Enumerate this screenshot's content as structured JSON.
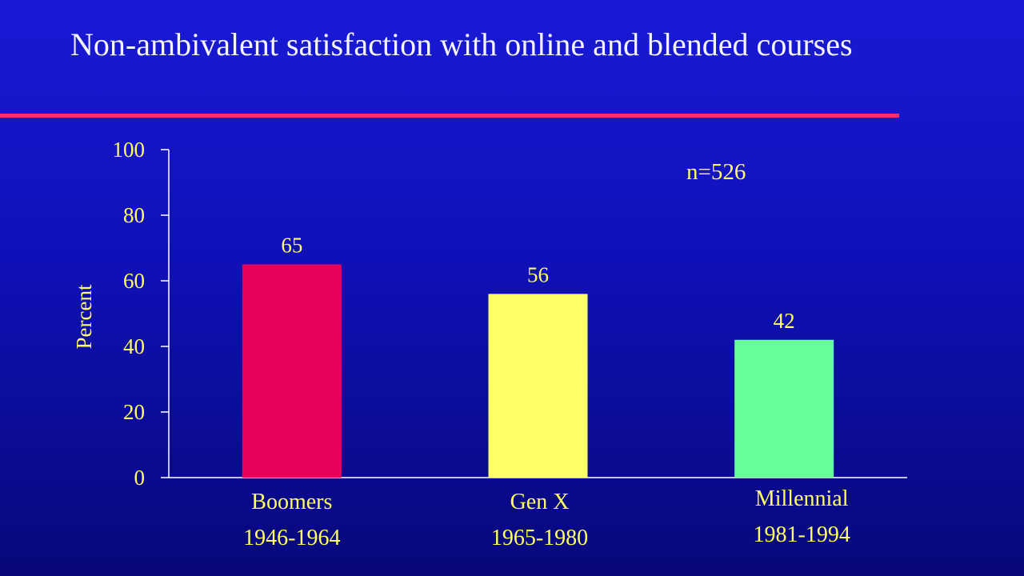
{
  "slide": {
    "title": "Non-ambivalent satisfaction with online and blended courses"
  },
  "colors": {
    "background": "#1414c8",
    "title": "#f4f4ff",
    "rule": "#ff2d6e",
    "text": "#ffff66",
    "axis": "#ffffff"
  },
  "chart_data": {
    "type": "bar",
    "title": "",
    "xlabel": "",
    "ylabel": "Percent",
    "ylim": [
      0,
      100
    ],
    "yticks": [
      0,
      20,
      40,
      60,
      80,
      100
    ],
    "grid": false,
    "annotation": "n=526",
    "categories": [
      {
        "name": "Boomers",
        "years": "1946-1964"
      },
      {
        "name": "Gen X",
        "years": "1965-1980"
      },
      {
        "name": "Millennial",
        "years": "1981-1994"
      }
    ],
    "values": [
      65,
      56,
      42
    ],
    "bar_colors": [
      "#e8005a",
      "#ffff66",
      "#66ff99"
    ]
  }
}
